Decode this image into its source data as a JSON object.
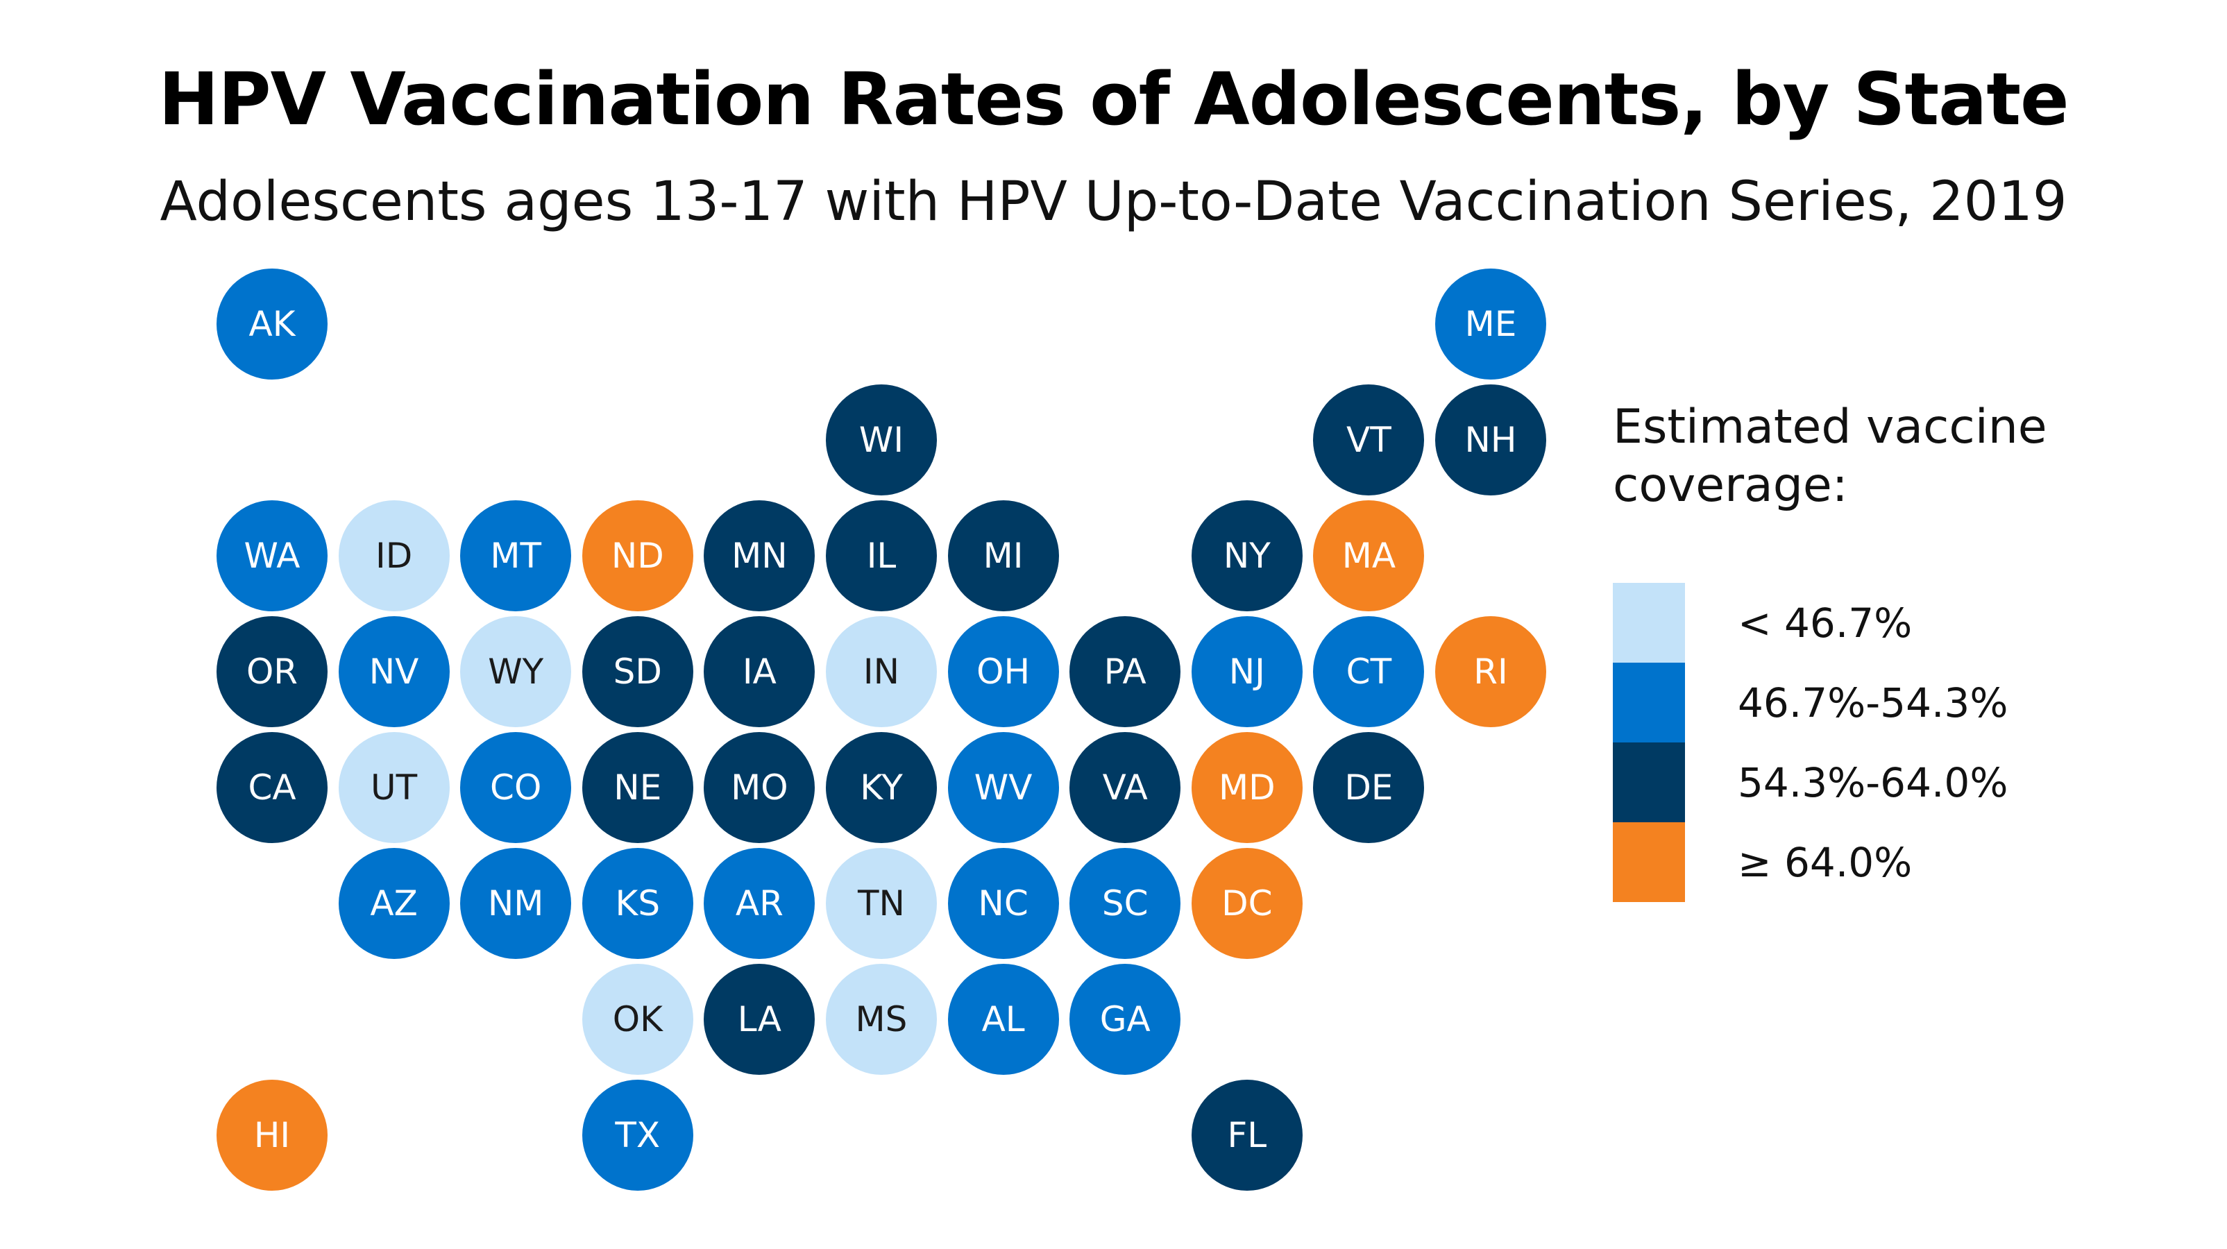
{
  "title": "HPV Vaccination Rates of Adolescents, by State",
  "subtitle": "Adolescents ages 13-17 with HPV Up-to-Date Vaccination Series, 2019",
  "colors": {
    "lt46_7": "#c3e2f9",
    "46_7to54_3": "#0073cc",
    "54_3to64_0": "#003a63",
    "gte64_0": "#f48220"
  },
  "legend": {
    "title": "Estimated vaccine coverage:",
    "items": [
      {
        "key": "lt46_7",
        "label": "< 46.7%"
      },
      {
        "key": "46_7to54_3",
        "label": "46.7%-54.3%"
      },
      {
        "key": "54_3to64_0",
        "label": "54.3%-64.0%"
      },
      {
        "key": "gte64_0",
        "label": "≥ 64.0%"
      }
    ]
  },
  "states": [
    {
      "abbr": "AK",
      "row": 0,
      "col": 0,
      "bin": "46_7to54_3"
    },
    {
      "abbr": "ME",
      "row": 0,
      "col": 10,
      "bin": "46_7to54_3"
    },
    {
      "abbr": "WI",
      "row": 1,
      "col": 5,
      "bin": "54_3to64_0"
    },
    {
      "abbr": "VT",
      "row": 1,
      "col": 9,
      "bin": "54_3to64_0"
    },
    {
      "abbr": "NH",
      "row": 1,
      "col": 10,
      "bin": "54_3to64_0"
    },
    {
      "abbr": "WA",
      "row": 2,
      "col": 0,
      "bin": "46_7to54_3"
    },
    {
      "abbr": "ID",
      "row": 2,
      "col": 1,
      "bin": "lt46_7"
    },
    {
      "abbr": "MT",
      "row": 2,
      "col": 2,
      "bin": "46_7to54_3"
    },
    {
      "abbr": "ND",
      "row": 2,
      "col": 3,
      "bin": "gte64_0"
    },
    {
      "abbr": "MN",
      "row": 2,
      "col": 4,
      "bin": "54_3to64_0"
    },
    {
      "abbr": "IL",
      "row": 2,
      "col": 5,
      "bin": "54_3to64_0"
    },
    {
      "abbr": "MI",
      "row": 2,
      "col": 6,
      "bin": "54_3to64_0"
    },
    {
      "abbr": "NY",
      "row": 2,
      "col": 8,
      "bin": "54_3to64_0"
    },
    {
      "abbr": "MA",
      "row": 2,
      "col": 9,
      "bin": "gte64_0"
    },
    {
      "abbr": "OR",
      "row": 3,
      "col": 0,
      "bin": "54_3to64_0"
    },
    {
      "abbr": "NV",
      "row": 3,
      "col": 1,
      "bin": "46_7to54_3"
    },
    {
      "abbr": "WY",
      "row": 3,
      "col": 2,
      "bin": "lt46_7"
    },
    {
      "abbr": "SD",
      "row": 3,
      "col": 3,
      "bin": "54_3to64_0"
    },
    {
      "abbr": "IA",
      "row": 3,
      "col": 4,
      "bin": "54_3to64_0"
    },
    {
      "abbr": "IN",
      "row": 3,
      "col": 5,
      "bin": "lt46_7"
    },
    {
      "abbr": "OH",
      "row": 3,
      "col": 6,
      "bin": "46_7to54_3"
    },
    {
      "abbr": "PA",
      "row": 3,
      "col": 7,
      "bin": "54_3to64_0"
    },
    {
      "abbr": "NJ",
      "row": 3,
      "col": 8,
      "bin": "46_7to54_3"
    },
    {
      "abbr": "CT",
      "row": 3,
      "col": 9,
      "bin": "46_7to54_3"
    },
    {
      "abbr": "RI",
      "row": 3,
      "col": 10,
      "bin": "gte64_0"
    },
    {
      "abbr": "CA",
      "row": 4,
      "col": 0,
      "bin": "54_3to64_0"
    },
    {
      "abbr": "UT",
      "row": 4,
      "col": 1,
      "bin": "lt46_7"
    },
    {
      "abbr": "CO",
      "row": 4,
      "col": 2,
      "bin": "46_7to54_3"
    },
    {
      "abbr": "NE",
      "row": 4,
      "col": 3,
      "bin": "54_3to64_0"
    },
    {
      "abbr": "MO",
      "row": 4,
      "col": 4,
      "bin": "54_3to64_0"
    },
    {
      "abbr": "KY",
      "row": 4,
      "col": 5,
      "bin": "54_3to64_0"
    },
    {
      "abbr": "WV",
      "row": 4,
      "col": 6,
      "bin": "46_7to54_3"
    },
    {
      "abbr": "VA",
      "row": 4,
      "col": 7,
      "bin": "54_3to64_0"
    },
    {
      "abbr": "MD",
      "row": 4,
      "col": 8,
      "bin": "gte64_0"
    },
    {
      "abbr": "DE",
      "row": 4,
      "col": 9,
      "bin": "54_3to64_0"
    },
    {
      "abbr": "AZ",
      "row": 5,
      "col": 1,
      "bin": "46_7to54_3"
    },
    {
      "abbr": "NM",
      "row": 5,
      "col": 2,
      "bin": "46_7to54_3"
    },
    {
      "abbr": "KS",
      "row": 5,
      "col": 3,
      "bin": "46_7to54_3"
    },
    {
      "abbr": "AR",
      "row": 5,
      "col": 4,
      "bin": "46_7to54_3"
    },
    {
      "abbr": "TN",
      "row": 5,
      "col": 5,
      "bin": "lt46_7"
    },
    {
      "abbr": "NC",
      "row": 5,
      "col": 6,
      "bin": "46_7to54_3"
    },
    {
      "abbr": "SC",
      "row": 5,
      "col": 7,
      "bin": "46_7to54_3"
    },
    {
      "abbr": "DC",
      "row": 5,
      "col": 8,
      "bin": "gte64_0"
    },
    {
      "abbr": "OK",
      "row": 6,
      "col": 3,
      "bin": "lt46_7"
    },
    {
      "abbr": "LA",
      "row": 6,
      "col": 4,
      "bin": "54_3to64_0"
    },
    {
      "abbr": "MS",
      "row": 6,
      "col": 5,
      "bin": "lt46_7"
    },
    {
      "abbr": "AL",
      "row": 6,
      "col": 6,
      "bin": "46_7to54_3"
    },
    {
      "abbr": "GA",
      "row": 6,
      "col": 7,
      "bin": "46_7to54_3"
    },
    {
      "abbr": "HI",
      "row": 7,
      "col": 0,
      "bin": "gte64_0"
    },
    {
      "abbr": "TX",
      "row": 7,
      "col": 3,
      "bin": "46_7to54_3"
    },
    {
      "abbr": "FL",
      "row": 7,
      "col": 8,
      "bin": "54_3to64_0"
    }
  ]
}
